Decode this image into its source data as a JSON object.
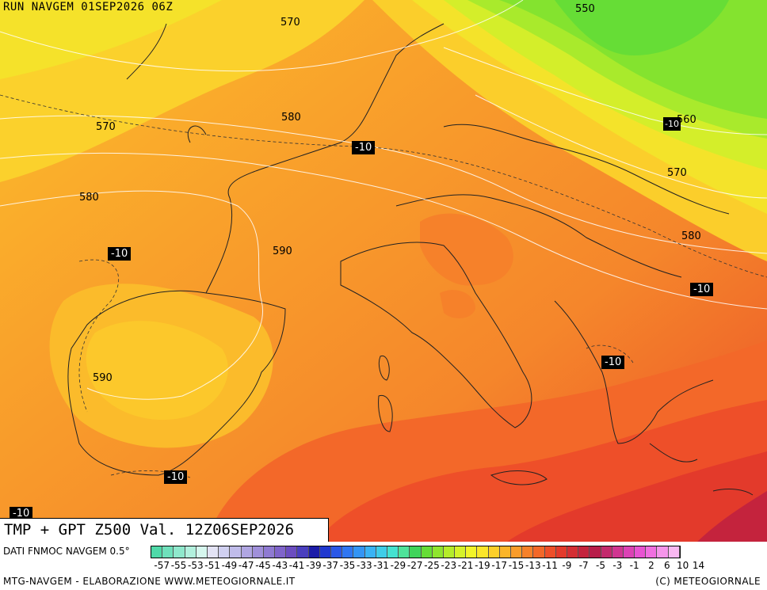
{
  "header": {
    "run": "RUN NAVGEM 01SEP2026 06Z"
  },
  "title": "TMP + GPT Z500 Val. 12Z06SEP2026",
  "legend": {
    "source": "DATI FNMOC NAVGEM 0.5°",
    "colors": [
      "#4fd9a8",
      "#6fe0bb",
      "#8fe8cc",
      "#b2f0dd",
      "#d6f7ee",
      "#e3e3f5",
      "#d0d0f0",
      "#c0bcea",
      "#b0a6e2",
      "#a090da",
      "#8f7ad2",
      "#7f64ca",
      "#6b4dc0",
      "#4a3fbf",
      "#1c1ca8",
      "#2038cf",
      "#2a57e6",
      "#2f76f2",
      "#3495f5",
      "#3ab3f5",
      "#3fcde8",
      "#45e2d0",
      "#4fe39a",
      "#3fd45a",
      "#66dd36",
      "#8fe52e",
      "#b5ec2a",
      "#d6f229",
      "#f2f429",
      "#fbe62a",
      "#fccf2a",
      "#fbb52a",
      "#f99c2a",
      "#f6812a",
      "#f36829",
      "#ee4f29",
      "#e33a2b",
      "#d42e33",
      "#c4233d",
      "#b81d4a",
      "#c32a6d",
      "#d03591",
      "#dc42b5",
      "#e853d2",
      "#f06fe0",
      "#f595ea",
      "#f9b8f1"
    ],
    "ticks": [
      "-57",
      "-55",
      "-53",
      "-51",
      "-49",
      "-47",
      "-45",
      "-43",
      "-41",
      "-39",
      "-37",
      "-35",
      "-33",
      "-31",
      "-29",
      "-27",
      "-25",
      "-23",
      "-21",
      "-19",
      "-17",
      "-15",
      "-13",
      "-11",
      "-9",
      "-7",
      "-5",
      "-3",
      "-1",
      "2",
      "6",
      "10",
      "14"
    ]
  },
  "footer": {
    "left": "MTG-NAVGEM - ELABORAZIONE WWW.METEOGIORNALE.IT",
    "right": "(C) METEOGIORNALE"
  },
  "gpt_labels": [
    "570",
    "570",
    "580",
    "580",
    "590",
    "590",
    "550",
    "560",
    "570",
    "580"
  ],
  "tmp_labels": [
    "-10",
    "-10",
    "-10",
    "-10",
    "-10",
    "-10",
    "-10",
    "-10"
  ]
}
